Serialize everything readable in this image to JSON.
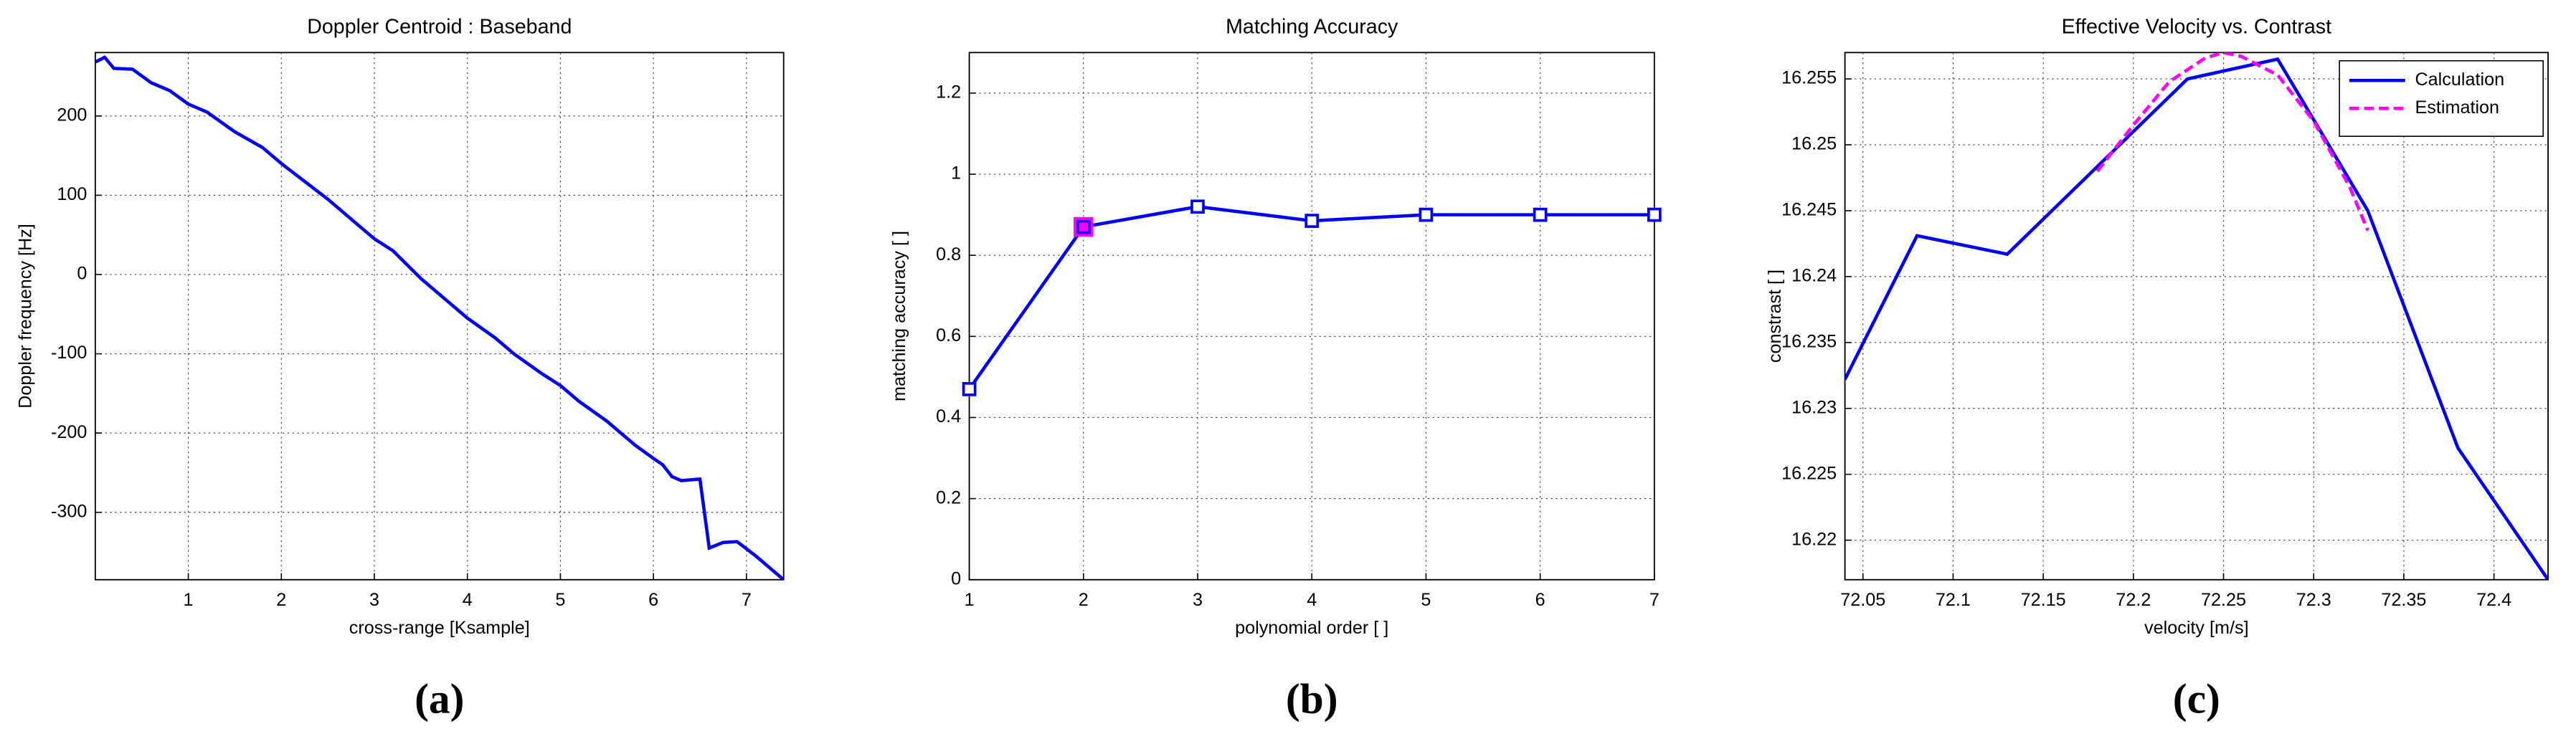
{
  "chart_data": [
    {
      "type": "line",
      "title": "Doppler Centroid : Baseband",
      "xlabel": "cross-range [Ksample]",
      "ylabel": "Doppler frequency [Hz]",
      "panel_label": "(a)",
      "xlim": [
        0,
        7.4
      ],
      "ylim": [
        -385,
        280
      ],
      "xticks": [
        1,
        2,
        3,
        4,
        5,
        6,
        7
      ],
      "yticks": [
        -300,
        -200,
        -100,
        0,
        100,
        200
      ],
      "grid": true,
      "series": [
        {
          "color": "#0000ff",
          "linestyle": "solid",
          "x": [
            0,
            0.1,
            0.2,
            0.4,
            0.6,
            0.8,
            1,
            1.2,
            1.5,
            1.8,
            2,
            2.2,
            2.5,
            2.8,
            3,
            3.2,
            3.5,
            3.8,
            4,
            4.3,
            4.5,
            4.8,
            5,
            5.2,
            5.5,
            5.8,
            6,
            6.1,
            6.2,
            6.3,
            6.5,
            6.6,
            6.75,
            6.9,
            7.1,
            7.4
          ],
          "values": [
            268,
            274,
            260,
            259,
            242,
            232,
            215,
            205,
            180,
            160,
            140,
            122,
            95,
            65,
            45,
            30,
            -5,
            -35,
            -55,
            -80,
            -100,
            -125,
            -140,
            -160,
            -185,
            -215,
            -232,
            -240,
            -255,
            -260,
            -258,
            -345,
            -338,
            -337,
            -355,
            -385
          ]
        }
      ]
    },
    {
      "type": "line",
      "title": "Matching Accuracy",
      "xlabel": "polynomial order [ ]",
      "ylabel": "matching accuracy [ ]",
      "panel_label": "(b)",
      "xlim": [
        1,
        7
      ],
      "ylim": [
        0,
        1.3
      ],
      "xticks": [
        1,
        2,
        3,
        4,
        5,
        6,
        7
      ],
      "yticks": [
        0,
        0.2,
        0.4,
        0.6,
        0.8,
        1,
        1.2
      ],
      "grid": true,
      "marker": "square",
      "highlight_point": 1,
      "highlight_color": "#ff00ff",
      "series": [
        {
          "color": "#0000ff",
          "linestyle": "solid",
          "x": [
            1,
            2,
            3,
            4,
            5,
            6,
            7
          ],
          "values": [
            0.47,
            0.87,
            0.92,
            0.885,
            0.9,
            0.9,
            0.9
          ]
        }
      ]
    },
    {
      "type": "line",
      "title": "Effective Velocity vs. Contrast",
      "xlabel": "velocity [m/s]",
      "ylabel": "constrast [ ]",
      "panel_label": "(c)",
      "xlim": [
        72.04,
        72.43
      ],
      "ylim": [
        16.217,
        16.257
      ],
      "xticks": [
        72.05,
        72.1,
        72.15,
        72.2,
        72.25,
        72.3,
        72.35,
        72.4
      ],
      "yticks": [
        16.22,
        16.225,
        16.23,
        16.235,
        16.24,
        16.245,
        16.25,
        16.255
      ],
      "grid": true,
      "legend": "top-right",
      "series": [
        {
          "name": "Calculation",
          "color": "#0000ff",
          "linestyle": "solid",
          "x": [
            72.04,
            72.08,
            72.13,
            72.23,
            72.28,
            72.33,
            72.38,
            72.43
          ],
          "values": [
            16.2322,
            16.2431,
            16.2417,
            16.255,
            16.2565,
            16.245,
            16.227,
            16.217
          ]
        },
        {
          "name": "Estimation",
          "color": "#ff00ff",
          "linestyle": "dashed",
          "x": [
            72.18,
            72.2,
            72.22,
            72.24,
            72.25,
            72.26,
            72.28,
            72.3,
            72.32,
            72.33
          ],
          "values": [
            16.248,
            16.2515,
            16.2548,
            16.2566,
            16.257,
            16.2567,
            16.2553,
            16.2518,
            16.2468,
            16.2435
          ]
        }
      ]
    }
  ]
}
